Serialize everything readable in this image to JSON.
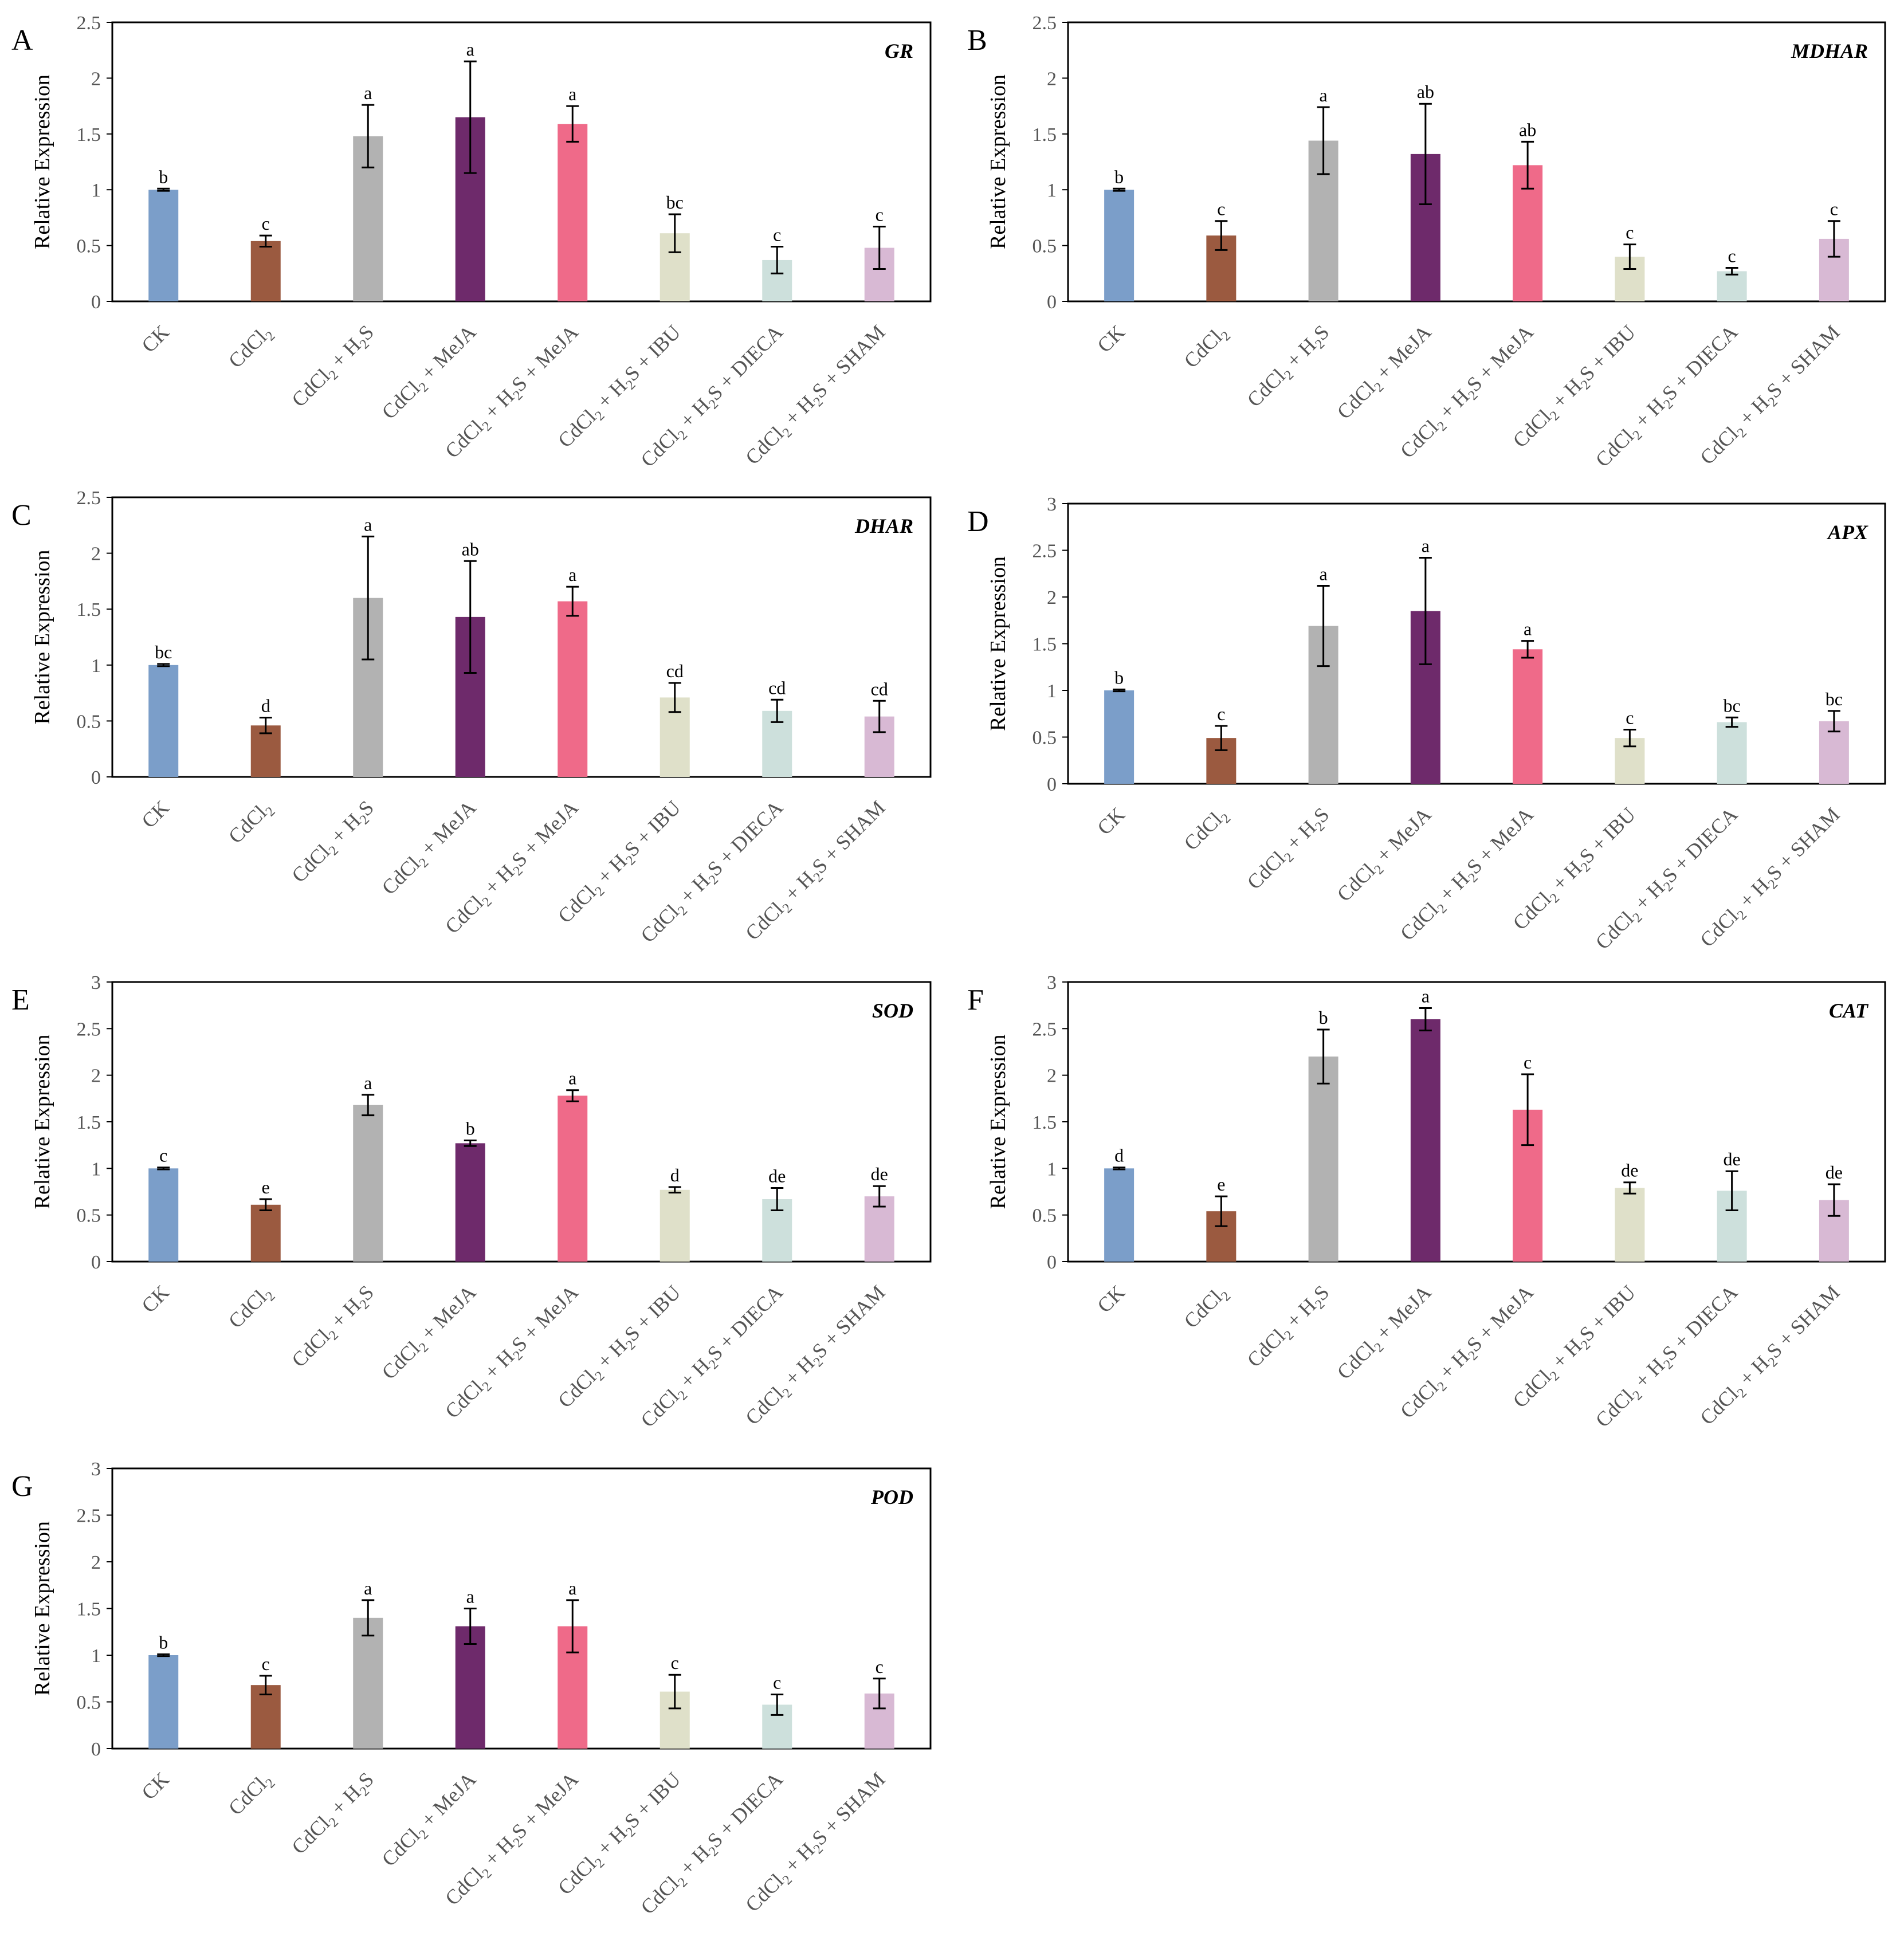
{
  "figure": {
    "ylabel": "Relative Expression",
    "categories": [
      [
        "CK"
      ],
      [
        "CdCl",
        "2"
      ],
      [
        "CdCl",
        "2",
        " + H",
        "2",
        "S"
      ],
      [
        "CdCl",
        "2",
        " + MeJA"
      ],
      [
        "CdCl",
        "2",
        " + H",
        "2",
        "S + MeJA"
      ],
      [
        "CdCl",
        "2",
        " + H",
        "2",
        "S + IBU"
      ],
      [
        "CdCl",
        "2",
        " + H",
        "2",
        "S + DIECA"
      ],
      [
        "CdCl",
        "2",
        " + H",
        "2",
        "S + SHAM"
      ]
    ],
    "colors": [
      "#7b9ec9",
      "#9b5a40",
      "#b2b2b2",
      "#6e2a6b",
      "#ef6a89",
      "#dfe0c9",
      "#cde0dc",
      "#d8b9d4"
    ]
  },
  "chart_data": [
    {
      "type": "bar",
      "panel": "A",
      "title": "GR",
      "ylim": [
        0,
        2.5
      ],
      "yticks": [
        "0",
        "0.5",
        "1",
        "1.5",
        "2",
        "2.5"
      ],
      "values": [
        1.0,
        0.54,
        1.48,
        1.65,
        1.59,
        0.61,
        0.37,
        0.48
      ],
      "errors": [
        0.01,
        0.05,
        0.28,
        0.5,
        0.16,
        0.17,
        0.12,
        0.19
      ],
      "letters": [
        "b",
        "c",
        "a",
        "a",
        "a",
        "bc",
        "c",
        "c"
      ]
    },
    {
      "type": "bar",
      "panel": "B",
      "title": "MDHAR",
      "ylim": [
        0,
        2.5
      ],
      "yticks": [
        "0",
        "0.5",
        "1",
        "1.5",
        "2",
        "2.5"
      ],
      "values": [
        1.0,
        0.59,
        1.44,
        1.32,
        1.22,
        0.4,
        0.27,
        0.56
      ],
      "errors": [
        0.01,
        0.13,
        0.3,
        0.45,
        0.21,
        0.11,
        0.03,
        0.16
      ],
      "letters": [
        "b",
        "c",
        "a",
        "ab",
        "ab",
        "c",
        "c",
        "c"
      ]
    },
    {
      "type": "bar",
      "panel": "C",
      "title": "DHAR",
      "ylim": [
        0,
        2.5
      ],
      "yticks": [
        "0",
        "0.5",
        "1",
        "1.5",
        "2",
        "2.5"
      ],
      "values": [
        1.0,
        0.46,
        1.6,
        1.43,
        1.57,
        0.71,
        0.59,
        0.54
      ],
      "errors": [
        0.01,
        0.07,
        0.55,
        0.5,
        0.13,
        0.13,
        0.1,
        0.14
      ],
      "letters": [
        "bc",
        "d",
        "a",
        "ab",
        "a",
        "cd",
        "cd",
        "cd"
      ]
    },
    {
      "type": "bar",
      "panel": "D",
      "title": "APX",
      "ylim": [
        0,
        3
      ],
      "yticks": [
        "0",
        "0.5",
        "1",
        "1.5",
        "2",
        "2.5",
        "3"
      ],
      "values": [
        1.0,
        0.49,
        1.69,
        1.85,
        1.44,
        0.49,
        0.66,
        0.67
      ],
      "errors": [
        0.01,
        0.13,
        0.43,
        0.57,
        0.09,
        0.09,
        0.05,
        0.11
      ],
      "letters": [
        "b",
        "c",
        "a",
        "a",
        "a",
        "c",
        "bc",
        "bc"
      ]
    },
    {
      "type": "bar",
      "panel": "E",
      "title": "SOD",
      "ylim": [
        0,
        3
      ],
      "yticks": [
        "0",
        "0.5",
        "1",
        "1.5",
        "2",
        "2.5",
        "3"
      ],
      "values": [
        1.0,
        0.61,
        1.68,
        1.27,
        1.78,
        0.77,
        0.67,
        0.7
      ],
      "errors": [
        0.01,
        0.06,
        0.11,
        0.03,
        0.06,
        0.03,
        0.12,
        0.11
      ],
      "letters": [
        "c",
        "e",
        "a",
        "b",
        "a",
        "d",
        "de",
        "de"
      ]
    },
    {
      "type": "bar",
      "panel": "F",
      "title": "CAT",
      "ylim": [
        0,
        3
      ],
      "yticks": [
        "0",
        "0.5",
        "1",
        "1.5",
        "2",
        "2.5",
        "3"
      ],
      "values": [
        1.0,
        0.54,
        2.2,
        2.6,
        1.63,
        0.79,
        0.76,
        0.66
      ],
      "errors": [
        0.01,
        0.16,
        0.29,
        0.12,
        0.38,
        0.06,
        0.21,
        0.17
      ],
      "letters": [
        "d",
        "e",
        "b",
        "a",
        "c",
        "de",
        "de",
        "de"
      ]
    },
    {
      "type": "bar",
      "panel": "G",
      "title": "POD",
      "ylim": [
        0,
        3
      ],
      "yticks": [
        "0",
        "0.5",
        "1",
        "1.5",
        "2",
        "2.5",
        "3"
      ],
      "values": [
        1.0,
        0.68,
        1.4,
        1.31,
        1.31,
        0.61,
        0.47,
        0.59
      ],
      "errors": [
        0.01,
        0.1,
        0.19,
        0.19,
        0.28,
        0.18,
        0.11,
        0.16
      ],
      "letters": [
        "b",
        "c",
        "a",
        "a",
        "a",
        "c",
        "c",
        "c"
      ]
    }
  ]
}
